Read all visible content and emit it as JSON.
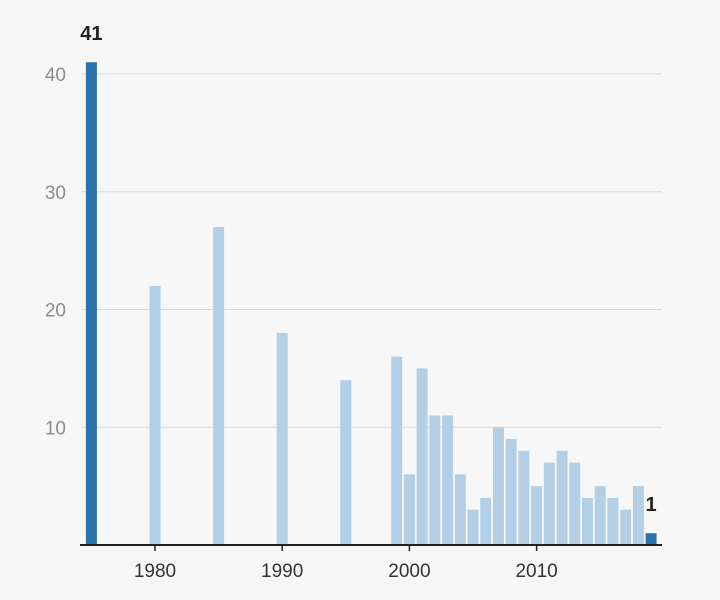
{
  "chart_data": {
    "type": "bar",
    "x": [
      1975,
      1980,
      1985,
      1990,
      1995,
      1999,
      2000,
      2001,
      2002,
      2003,
      2004,
      2005,
      2006,
      2007,
      2008,
      2009,
      2010,
      2011,
      2012,
      2013,
      2014,
      2015,
      2016,
      2017,
      2018,
      2019
    ],
    "values": [
      41,
      22,
      27,
      18,
      14,
      16,
      6,
      15,
      11,
      11,
      6,
      3,
      4,
      10,
      9,
      8,
      5,
      7,
      8,
      7,
      4,
      5,
      4,
      3,
      5,
      1
    ],
    "highlighted_x": [
      1975,
      2019
    ],
    "data_labels": [
      {
        "x": 1975,
        "text": "41"
      },
      {
        "x": 2019,
        "text": "1"
      }
    ],
    "title": "",
    "xlabel": "",
    "ylabel": "",
    "ylim": [
      0,
      40
    ],
    "yticks": [
      10,
      20,
      30,
      40
    ],
    "xticks": [
      1980,
      1990,
      2000,
      2010
    ],
    "ytick_labels": [
      "10",
      "20",
      "30",
      "40"
    ],
    "xtick_labels": [
      "1980",
      "1990",
      "2000",
      "2010"
    ],
    "grid": true,
    "legend": "none",
    "colors": {
      "bar": "#b3cfe6",
      "highlight": "#2a72aa",
      "grid": "#d9d9d9",
      "axis": "#222222"
    }
  }
}
